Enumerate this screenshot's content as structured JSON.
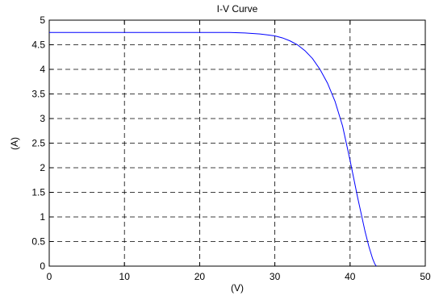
{
  "chart_data": {
    "type": "line",
    "title": "I-V Curve",
    "xlabel": "(V)",
    "ylabel": "(A)",
    "xlim": [
      0,
      50
    ],
    "ylim": [
      0,
      5
    ],
    "xticks": [
      "0",
      "10",
      "20",
      "30",
      "40",
      "50"
    ],
    "yticks": [
      "0",
      "0.5",
      "1",
      "1.5",
      "2",
      "2.5",
      "3",
      "3.5",
      "4",
      "4.5",
      "5"
    ],
    "grid": true,
    "series": [
      {
        "color": "#0000ff",
        "x": [
          0,
          5,
          10,
          15,
          20,
          22,
          24,
          26,
          28,
          29,
          30,
          31,
          32,
          33,
          34,
          35,
          36,
          37,
          38,
          39,
          40,
          41,
          42,
          42.5,
          43,
          43.3,
          43.5
        ],
        "y": [
          4.75,
          4.75,
          4.75,
          4.75,
          4.75,
          4.75,
          4.75,
          4.74,
          4.72,
          4.7,
          4.68,
          4.64,
          4.58,
          4.5,
          4.38,
          4.22,
          4.0,
          3.72,
          3.35,
          2.85,
          2.15,
          1.4,
          0.7,
          0.4,
          0.15,
          0.04,
          0.0
        ]
      }
    ]
  }
}
